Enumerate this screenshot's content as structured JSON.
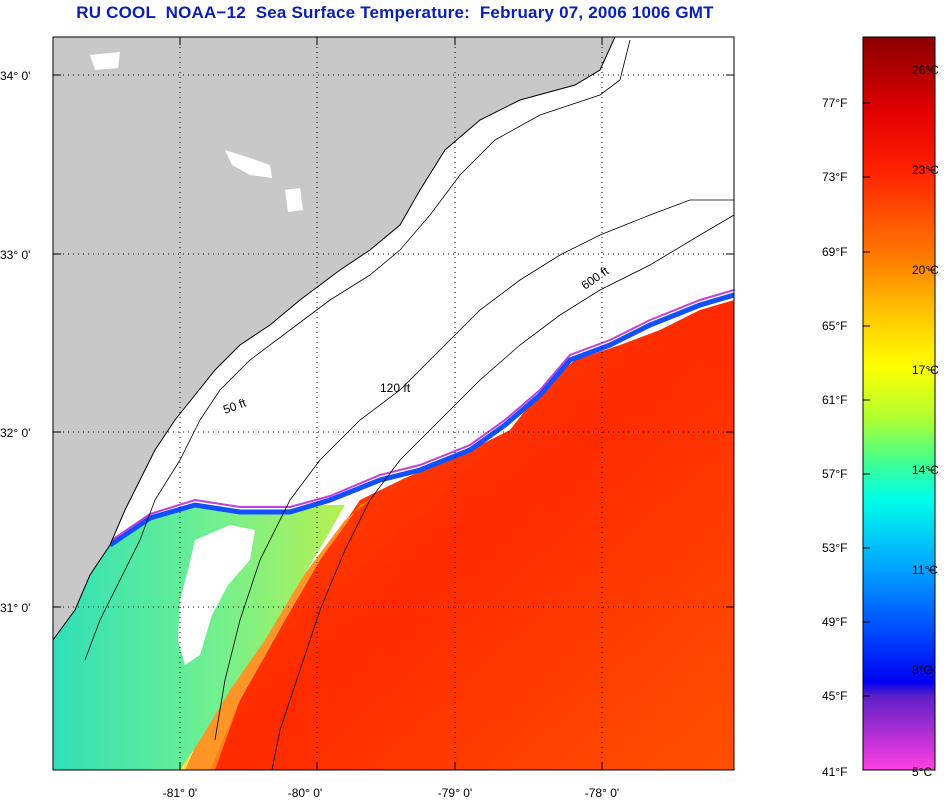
{
  "title": "RU COOL  NOAA−12  Sea Surface Temperature:  February 07, 2006 1006 GMT",
  "map": {
    "latitude_labels": [
      "34° 0'",
      "33° 0'",
      "32° 0'",
      "31° 0'"
    ],
    "longitude_labels": [
      "-81° 0'",
      "-80° 0'",
      "-79° 0'",
      "-78° 0'"
    ],
    "contour_labels": [
      "50 ft",
      "120 ft",
      "600 ft"
    ],
    "colors": {
      "land": "#c8c8c8",
      "cloud_mask": "#ffffff",
      "warm_water": "#ff2a00",
      "cool_water": "#2fe0c0",
      "coastline": "#000000"
    }
  },
  "colorbar": {
    "fahrenheit_labels": [
      "77°F",
      "73°F",
      "69°F",
      "65°F",
      "61°F",
      "57°F",
      "53°F",
      "49°F",
      "45°F",
      "41°F"
    ],
    "celsius_labels": [
      "26°C",
      "23°C",
      "20°C",
      "17°C",
      "14°C",
      "11°C",
      "8°C",
      "5°C"
    ],
    "colors": [
      "#8b0000",
      "#ff0000",
      "#ff6a00",
      "#ffd200",
      "#ffff00",
      "#7fff3f",
      "#00ffe0",
      "#0090ff",
      "#0010ff",
      "#8020c0",
      "#ff40e0"
    ]
  }
}
